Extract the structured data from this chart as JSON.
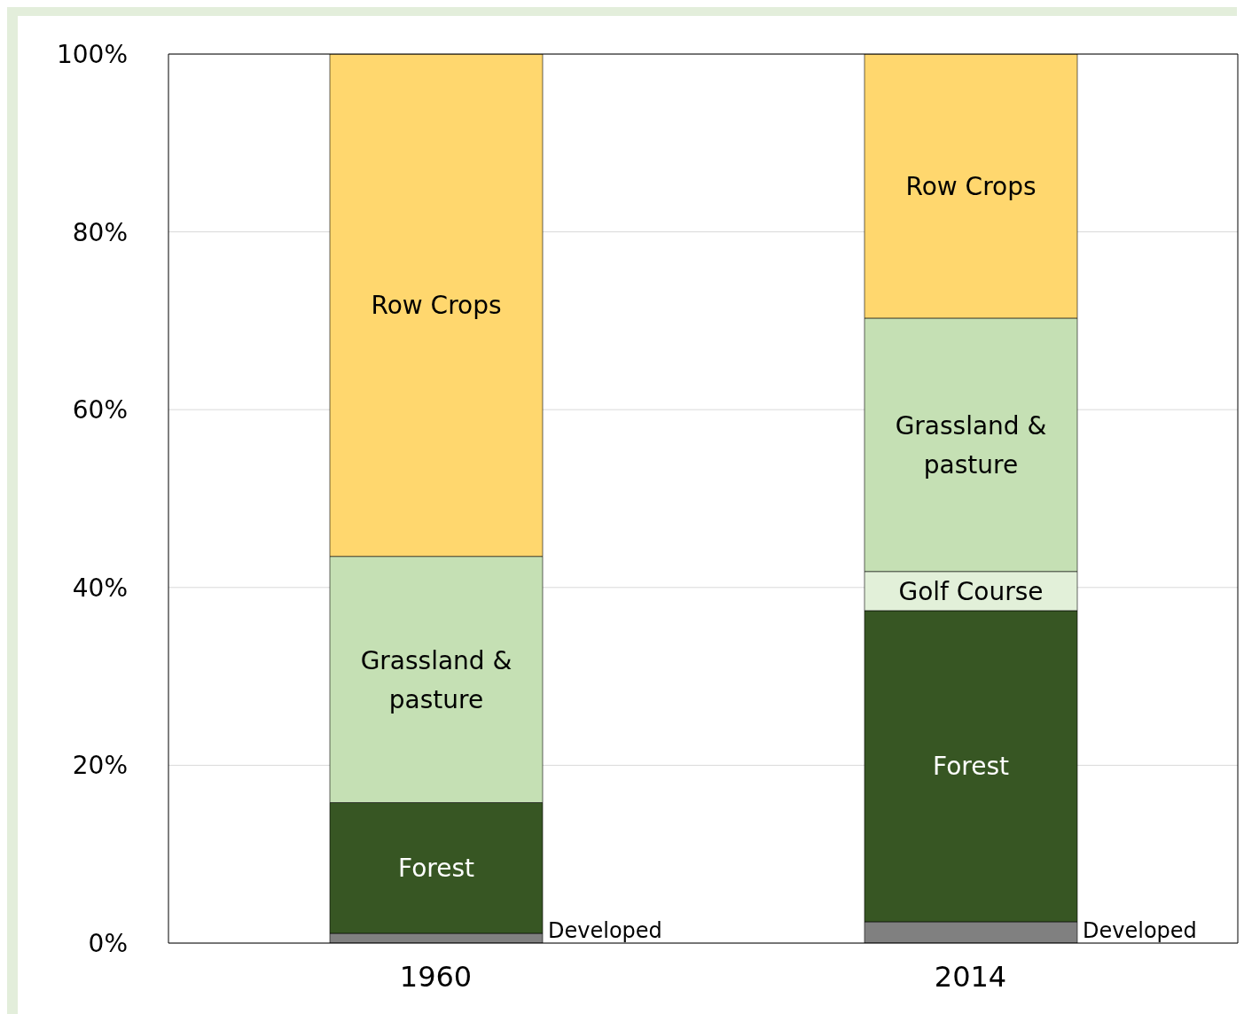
{
  "chart_data": {
    "type": "bar",
    "stacked": true,
    "categories": [
      "1960",
      "2014"
    ],
    "series": [
      {
        "name": "Developed",
        "color": "#808080",
        "values": [
          1.1,
          2.4
        ]
      },
      {
        "name": "Forest",
        "color": "#375623",
        "values": [
          14.7,
          35.0
        ]
      },
      {
        "name": "Golf Course",
        "color": "#e2f0d9",
        "values": [
          0,
          4.4
        ]
      },
      {
        "name": "Grassland & pasture",
        "color": "#c5e0b4",
        "values": [
          27.7,
          28.5
        ]
      },
      {
        "name": "Row Crops",
        "color": "#ffd76e",
        "values": [
          56.5,
          29.7
        ]
      }
    ],
    "ylim": [
      0,
      100
    ],
    "yticks": [
      {
        "value": 0,
        "label": "0%"
      },
      {
        "value": 20,
        "label": "20%"
      },
      {
        "value": 40,
        "label": "40%"
      },
      {
        "value": 60,
        "label": "60%"
      },
      {
        "value": 80,
        "label": "80%"
      },
      {
        "value": 100,
        "label": "100%"
      }
    ],
    "grid": "y",
    "legend": false
  }
}
